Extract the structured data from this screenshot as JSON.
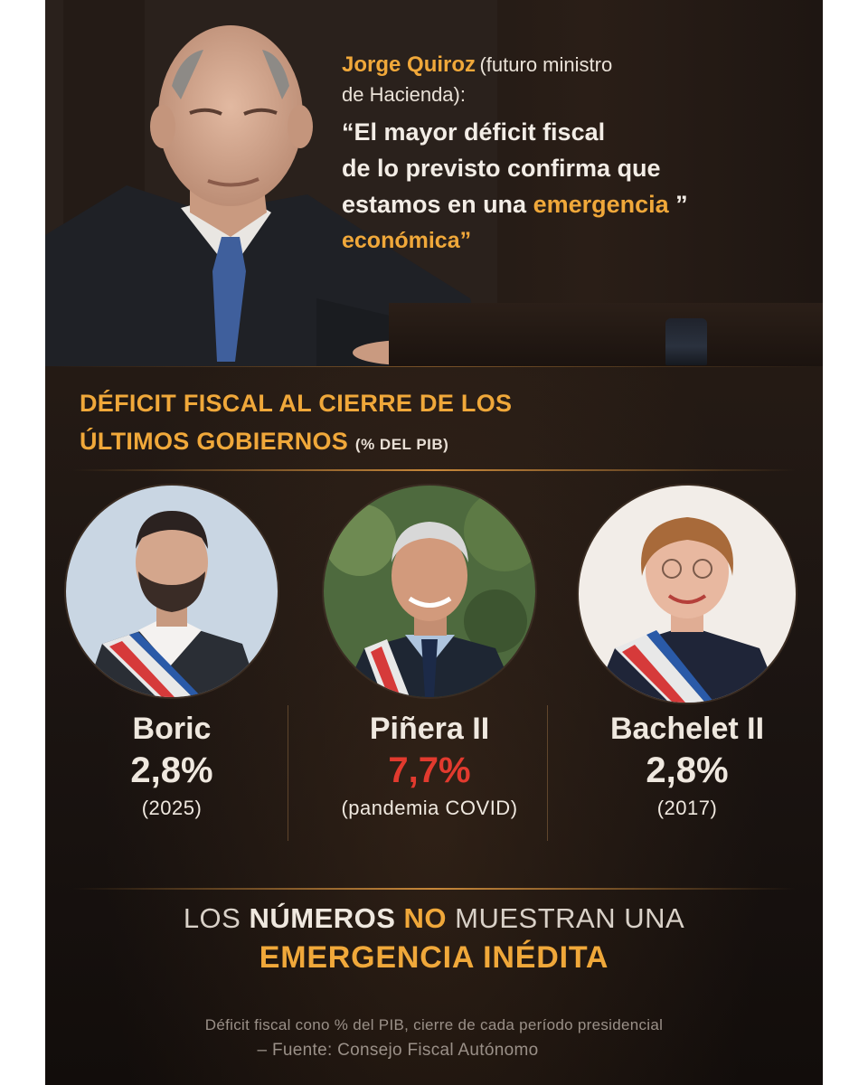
{
  "quote": {
    "name": "Jorge Quiroz",
    "role_1": "(futuro ministro",
    "role_2": "de Hacienda):",
    "line_1": "“El mayor déficit fiscal",
    "line_2": "de lo previsto confirma que",
    "line_3_pre": "estamos en una ",
    "line_3_accent": "emergencia",
    "line_3_post": " ”",
    "line_4": "económica”"
  },
  "section": {
    "title_1": "DÉFICIT FISCAL AL CIERRE DE LOS",
    "title_2": "ÚLTIMOS GOBIERNOS",
    "subtitle": "(% DEL PIB)"
  },
  "governments": [
    {
      "name": "Boric",
      "value": "2,8%",
      "note": "(2025)"
    },
    {
      "name": "Piñera II",
      "value": "7,7%",
      "note": "(pandemia COVID)"
    },
    {
      "name": "Bachelet II",
      "value": "2,8%",
      "note": "(2017)"
    }
  ],
  "conclusion": {
    "p1": "LOS ",
    "p2": "NÚMEROS",
    "p3": " ",
    "p4": "NO",
    "p5": " MUESTRAN UNA",
    "line_2": "EMERGENCIA INÉDITA"
  },
  "footer": {
    "line_1": "Déficit fiscal cono  % del PIB, cierre de cada período presidencial",
    "line_2": "– Fuente: Consejo Fiscal Autónomo"
  },
  "colors": {
    "accent": "#f0a83a",
    "highlight": "#e23a2e",
    "background": "#1a1411"
  }
}
